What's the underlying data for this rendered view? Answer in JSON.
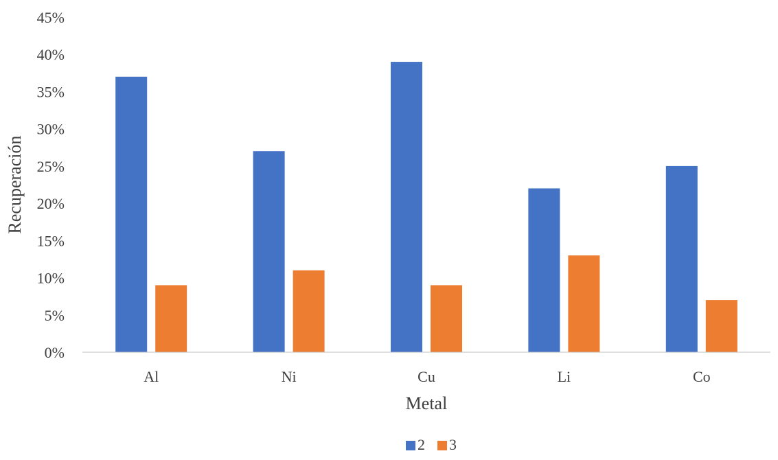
{
  "chart_data": {
    "type": "bar",
    "title": "",
    "xlabel": "Metal",
    "ylabel": "Recuperación",
    "categories": [
      "Al",
      "Ni",
      "Cu",
      "Li",
      "Co"
    ],
    "series": [
      {
        "name": "2",
        "values": [
          37,
          27,
          39,
          22,
          25
        ],
        "color": "#4472C4"
      },
      {
        "name": "3",
        "values": [
          9,
          11,
          9,
          13,
          7
        ],
        "color": "#ED7D31"
      }
    ],
    "ylim": [
      0,
      45
    ],
    "yticks": [
      0,
      5,
      10,
      15,
      20,
      25,
      30,
      35,
      40,
      45
    ],
    "ytick_suffix": "%",
    "grid": false,
    "legend_position": "bottom"
  }
}
